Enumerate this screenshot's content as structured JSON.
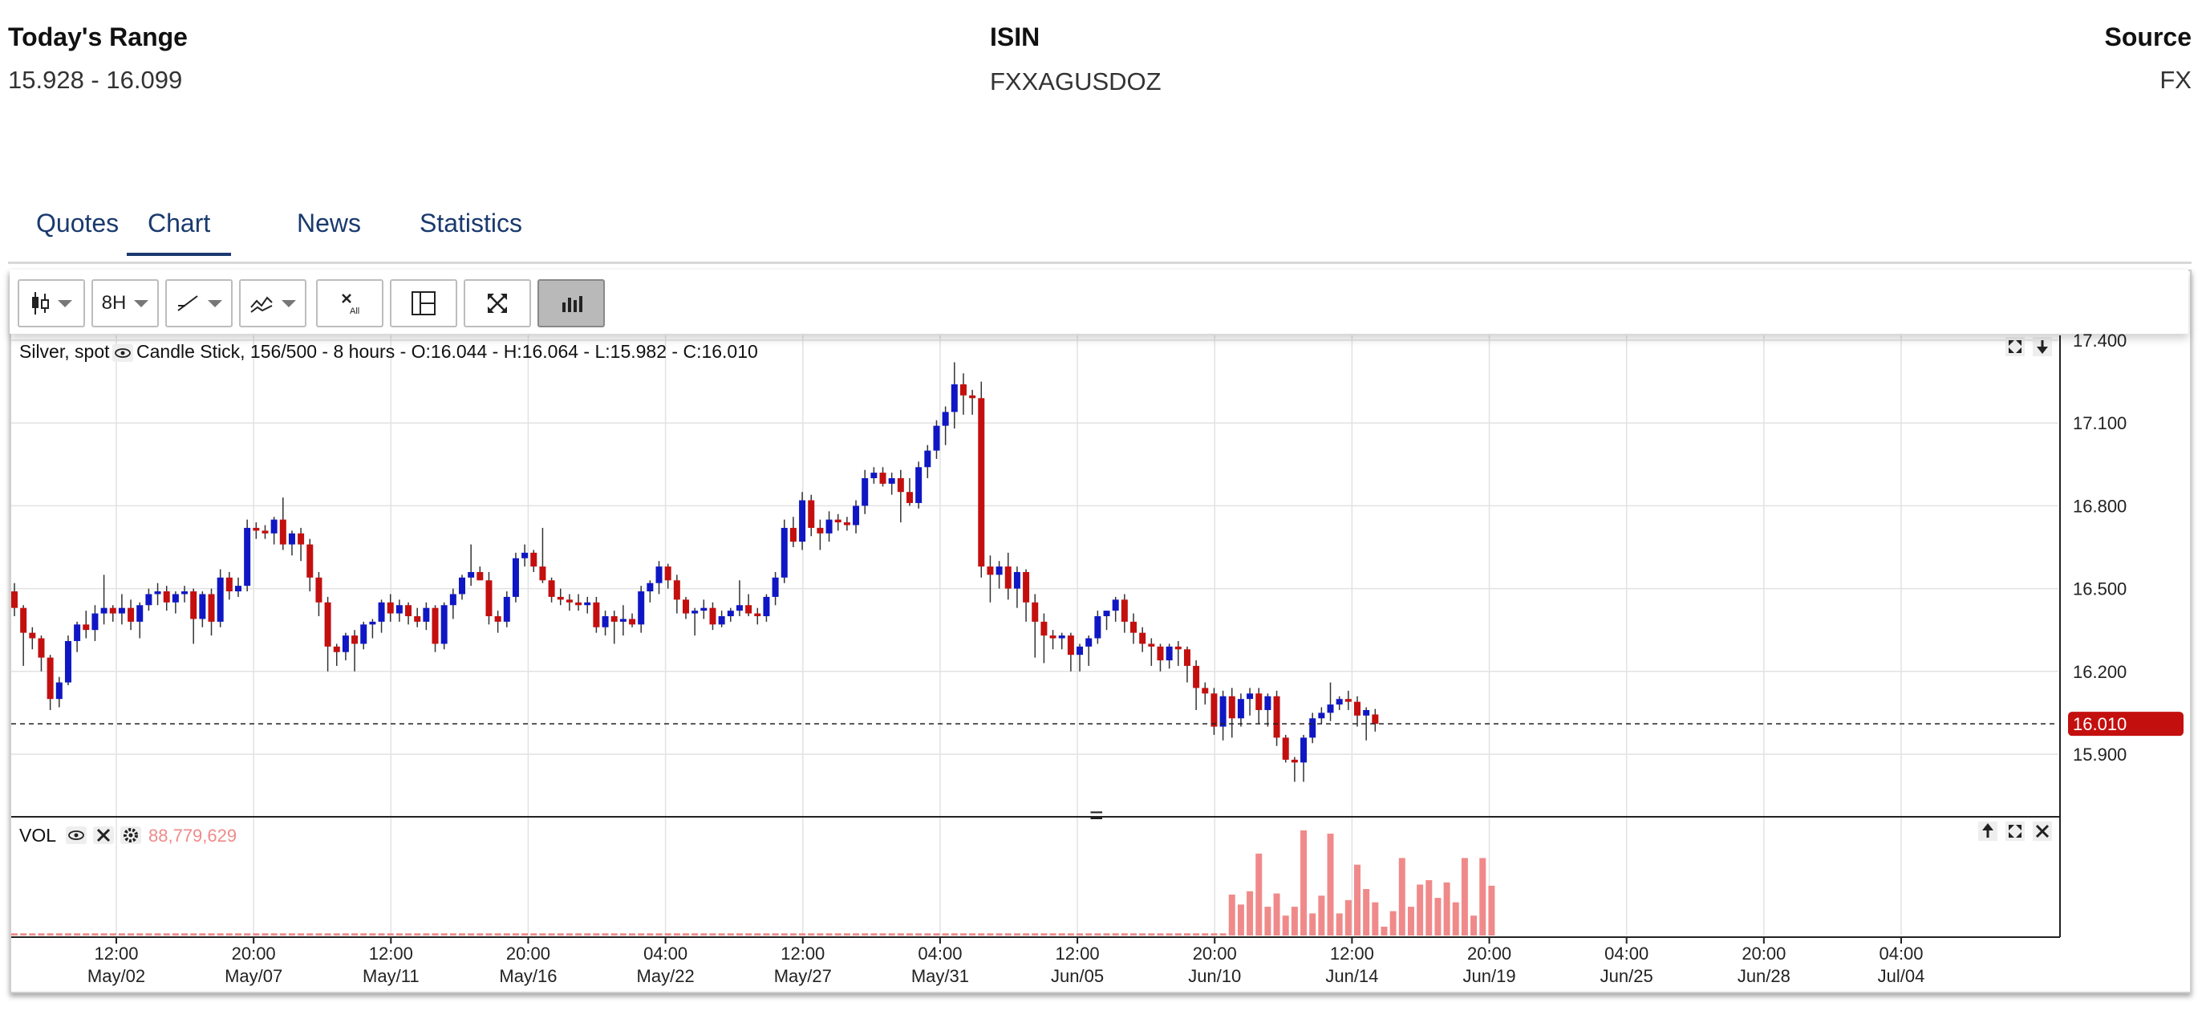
{
  "header": {
    "range_label": "Today's Range",
    "range_value": "15.928 - 16.099",
    "isin_label": "ISIN",
    "isin_value": "FXXAGUSDOZ",
    "source_label": "Source",
    "source_value": "FX"
  },
  "tabs": [
    {
      "label": "Quotes",
      "active": false
    },
    {
      "label": "Chart",
      "active": true
    },
    {
      "label": "News",
      "active": false
    },
    {
      "label": "Statistics",
      "active": false
    }
  ],
  "toolbar": {
    "chart_type_icon": "candlestick-icon",
    "interval_label": "8H",
    "draw_icon": "trendline-icon",
    "indicator_icon": "indicator-icon",
    "clear_icon": "clear-all-icon",
    "crosshair_icon": "crosshair-icon",
    "fullscreen_icon": "fullscreen-icon",
    "volume_icon": "volume-bars-icon"
  },
  "chart_data": {
    "type": "candlestick",
    "title": "Silver, spot",
    "subtitle": "Candle Stick, 156/500 - 8 hours - O:16.044 - H:16.064 - L:15.982 - C:16.010",
    "last_price": "16.010",
    "last_price_value": 16.01,
    "y_ticks": [
      "17.400",
      "17.100",
      "16.800",
      "16.500",
      "16.200",
      "15.900"
    ],
    "y_tick_values": [
      17.4,
      17.1,
      16.8,
      16.5,
      16.2,
      15.9
    ],
    "x_ticks": [
      {
        "time": "12:00",
        "date": "May/02"
      },
      {
        "time": "20:00",
        "date": "May/07"
      },
      {
        "time": "12:00",
        "date": "May/11"
      },
      {
        "time": "20:00",
        "date": "May/16"
      },
      {
        "time": "04:00",
        "date": "May/22"
      },
      {
        "time": "12:00",
        "date": "May/27"
      },
      {
        "time": "04:00",
        "date": "May/31"
      },
      {
        "time": "12:00",
        "date": "Jun/05"
      },
      {
        "time": "20:00",
        "date": "Jun/10"
      },
      {
        "time": "12:00",
        "date": "Jun/14"
      },
      {
        "time": "20:00",
        "date": "Jun/19"
      },
      {
        "time": "04:00",
        "date": "Jun/25"
      },
      {
        "time": "20:00",
        "date": "Jun/28"
      },
      {
        "time": "04:00",
        "date": "Jul/04"
      }
    ],
    "ohlc": [
      [
        16.49,
        16.52,
        16.4,
        16.43
      ],
      [
        16.43,
        16.44,
        16.22,
        16.34
      ],
      [
        16.34,
        16.36,
        16.28,
        16.32
      ],
      [
        16.32,
        16.33,
        16.2,
        16.25
      ],
      [
        16.25,
        16.26,
        16.06,
        16.1
      ],
      [
        16.1,
        16.18,
        16.07,
        16.16
      ],
      [
        16.16,
        16.33,
        16.15,
        16.31
      ],
      [
        16.31,
        16.38,
        16.27,
        16.37
      ],
      [
        16.37,
        16.42,
        16.32,
        16.35
      ],
      [
        16.35,
        16.44,
        16.31,
        16.41
      ],
      [
        16.41,
        16.55,
        16.37,
        16.43
      ],
      [
        16.43,
        16.44,
        16.38,
        16.41
      ],
      [
        16.41,
        16.48,
        16.37,
        16.43
      ],
      [
        16.43,
        16.46,
        16.35,
        16.38
      ],
      [
        16.38,
        16.45,
        16.32,
        16.44
      ],
      [
        16.44,
        16.5,
        16.42,
        16.48
      ],
      [
        16.48,
        16.52,
        16.44,
        16.49
      ],
      [
        16.49,
        16.51,
        16.42,
        16.45
      ],
      [
        16.45,
        16.49,
        16.41,
        16.48
      ],
      [
        16.48,
        16.51,
        16.45,
        16.49
      ],
      [
        16.49,
        16.5,
        16.3,
        16.39
      ],
      [
        16.39,
        16.49,
        16.36,
        16.48
      ],
      [
        16.48,
        16.5,
        16.33,
        16.38
      ],
      [
        16.38,
        16.57,
        16.36,
        16.54
      ],
      [
        16.54,
        16.56,
        16.46,
        16.49
      ],
      [
        16.49,
        16.54,
        16.47,
        16.51
      ],
      [
        16.51,
        16.75,
        16.49,
        16.72
      ],
      [
        16.72,
        16.74,
        16.68,
        16.71
      ],
      [
        16.71,
        16.73,
        16.68,
        16.7
      ],
      [
        16.7,
        16.76,
        16.66,
        16.75
      ],
      [
        16.75,
        16.83,
        16.64,
        16.66
      ],
      [
        16.66,
        16.71,
        16.62,
        16.7
      ],
      [
        16.7,
        16.72,
        16.6,
        16.66
      ],
      [
        16.66,
        16.68,
        16.49,
        16.54
      ],
      [
        16.54,
        16.56,
        16.4,
        16.45
      ],
      [
        16.45,
        16.47,
        16.2,
        16.29
      ],
      [
        16.29,
        16.3,
        16.22,
        16.27
      ],
      [
        16.27,
        16.34,
        16.24,
        16.33
      ],
      [
        16.33,
        16.35,
        16.2,
        16.3
      ],
      [
        16.3,
        16.38,
        16.28,
        16.37
      ],
      [
        16.37,
        16.39,
        16.32,
        16.38
      ],
      [
        16.38,
        16.46,
        16.34,
        16.45
      ],
      [
        16.45,
        16.48,
        16.38,
        16.41
      ],
      [
        16.41,
        16.46,
        16.38,
        16.44
      ],
      [
        16.44,
        16.45,
        16.37,
        16.4
      ],
      [
        16.4,
        16.43,
        16.36,
        16.38
      ],
      [
        16.38,
        16.45,
        16.35,
        16.43
      ],
      [
        16.43,
        16.44,
        16.27,
        16.3
      ],
      [
        16.3,
        16.45,
        16.28,
        16.44
      ],
      [
        16.44,
        16.5,
        16.39,
        16.48
      ],
      [
        16.48,
        16.55,
        16.46,
        16.54
      ],
      [
        16.54,
        16.66,
        16.51,
        16.56
      ],
      [
        16.56,
        16.58,
        16.53,
        16.53
      ],
      [
        16.53,
        16.56,
        16.37,
        16.4
      ],
      [
        16.4,
        16.42,
        16.34,
        16.38
      ],
      [
        16.38,
        16.49,
        16.36,
        16.47
      ],
      [
        16.47,
        16.63,
        16.45,
        16.61
      ],
      [
        16.61,
        16.66,
        16.58,
        16.63
      ],
      [
        16.63,
        16.64,
        16.56,
        16.58
      ],
      [
        16.58,
        16.72,
        16.52,
        16.53
      ],
      [
        16.53,
        16.54,
        16.45,
        16.47
      ],
      [
        16.47,
        16.5,
        16.44,
        16.46
      ],
      [
        16.46,
        16.48,
        16.42,
        16.45
      ],
      [
        16.45,
        16.48,
        16.42,
        16.44
      ],
      [
        16.44,
        16.47,
        16.41,
        16.45
      ],
      [
        16.45,
        16.47,
        16.34,
        16.36
      ],
      [
        16.36,
        16.42,
        16.33,
        16.4
      ],
      [
        16.4,
        16.42,
        16.3,
        16.38
      ],
      [
        16.38,
        16.44,
        16.33,
        16.39
      ],
      [
        16.39,
        16.41,
        16.36,
        16.37
      ],
      [
        16.37,
        16.51,
        16.34,
        16.49
      ],
      [
        16.49,
        16.53,
        16.45,
        16.52
      ],
      [
        16.52,
        16.6,
        16.48,
        16.58
      ],
      [
        16.58,
        16.59,
        16.5,
        16.53
      ],
      [
        16.53,
        16.55,
        16.41,
        16.46
      ],
      [
        16.46,
        16.47,
        16.39,
        16.41
      ],
      [
        16.41,
        16.43,
        16.33,
        16.42
      ],
      [
        16.42,
        16.46,
        16.39,
        16.43
      ],
      [
        16.43,
        16.45,
        16.35,
        16.37
      ],
      [
        16.37,
        16.42,
        16.36,
        16.4
      ],
      [
        16.4,
        16.43,
        16.38,
        16.42
      ],
      [
        16.42,
        16.53,
        16.4,
        16.44
      ],
      [
        16.44,
        16.48,
        16.4,
        16.41
      ],
      [
        16.41,
        16.43,
        16.37,
        16.4
      ],
      [
        16.4,
        16.48,
        16.38,
        16.47
      ],
      [
        16.47,
        16.56,
        16.44,
        16.54
      ],
      [
        16.54,
        16.75,
        16.52,
        16.72
      ],
      [
        16.72,
        16.76,
        16.65,
        16.67
      ],
      [
        16.67,
        16.85,
        16.64,
        16.82
      ],
      [
        16.82,
        16.84,
        16.69,
        16.72
      ],
      [
        16.72,
        16.75,
        16.64,
        16.7
      ],
      [
        16.7,
        16.78,
        16.67,
        16.75
      ],
      [
        16.75,
        16.77,
        16.71,
        16.74
      ],
      [
        16.74,
        16.76,
        16.71,
        16.73
      ],
      [
        16.73,
        16.82,
        16.7,
        16.8
      ],
      [
        16.8,
        16.93,
        16.77,
        16.9
      ],
      [
        16.9,
        16.94,
        16.88,
        16.92
      ],
      [
        16.92,
        16.94,
        16.87,
        16.88
      ],
      [
        16.88,
        16.92,
        16.84,
        16.9
      ],
      [
        16.9,
        16.93,
        16.74,
        16.85
      ],
      [
        16.85,
        16.9,
        16.8,
        16.81
      ],
      [
        16.81,
        16.96,
        16.79,
        16.94
      ],
      [
        16.94,
        17.02,
        16.9,
        17.0
      ],
      [
        17.0,
        17.11,
        16.97,
        17.09
      ],
      [
        17.09,
        17.16,
        17.02,
        17.14
      ],
      [
        17.14,
        17.32,
        17.08,
        17.24
      ],
      [
        17.24,
        17.28,
        17.13,
        17.2
      ],
      [
        17.2,
        17.22,
        17.13,
        17.19
      ],
      [
        17.19,
        17.25,
        16.54,
        16.58
      ],
      [
        16.58,
        16.62,
        16.45,
        16.55
      ],
      [
        16.55,
        16.6,
        16.5,
        16.58
      ],
      [
        16.58,
        16.63,
        16.46,
        16.5
      ],
      [
        16.5,
        16.58,
        16.43,
        16.56
      ],
      [
        16.56,
        16.57,
        16.38,
        16.45
      ],
      [
        16.45,
        16.48,
        16.25,
        16.38
      ],
      [
        16.38,
        16.41,
        16.23,
        16.33
      ],
      [
        16.33,
        16.35,
        16.28,
        16.32
      ],
      [
        16.32,
        16.34,
        16.28,
        16.33
      ],
      [
        16.33,
        16.34,
        16.2,
        16.26
      ],
      [
        16.26,
        16.3,
        16.2,
        16.29
      ],
      [
        16.29,
        16.33,
        16.22,
        16.32
      ],
      [
        16.32,
        16.42,
        16.3,
        16.4
      ],
      [
        16.4,
        16.42,
        16.35,
        16.42
      ],
      [
        16.42,
        16.47,
        16.38,
        16.46
      ],
      [
        16.46,
        16.48,
        16.34,
        16.38
      ],
      [
        16.38,
        16.41,
        16.3,
        16.34
      ],
      [
        16.34,
        16.36,
        16.27,
        16.3
      ],
      [
        16.3,
        16.32,
        16.22,
        16.29
      ],
      [
        16.29,
        16.3,
        16.2,
        16.24
      ],
      [
        16.24,
        16.3,
        16.21,
        16.29
      ],
      [
        16.29,
        16.31,
        16.22,
        16.28
      ],
      [
        16.28,
        16.29,
        16.16,
        16.22
      ],
      [
        16.22,
        16.24,
        16.06,
        16.14
      ],
      [
        16.14,
        16.16,
        16.08,
        16.12
      ],
      [
        16.12,
        16.14,
        15.97,
        16.0
      ],
      [
        16.0,
        16.13,
        15.95,
        16.11
      ],
      [
        16.11,
        16.14,
        15.96,
        16.03
      ],
      [
        16.03,
        16.12,
        16.0,
        16.1
      ],
      [
        16.1,
        16.14,
        16.04,
        16.12
      ],
      [
        16.12,
        16.14,
        16.01,
        16.06
      ],
      [
        16.06,
        16.12,
        16.0,
        16.11
      ],
      [
        16.11,
        16.13,
        15.93,
        15.96
      ],
      [
        15.96,
        15.97,
        15.87,
        15.88
      ],
      [
        15.88,
        15.89,
        15.8,
        15.87
      ],
      [
        15.87,
        15.97,
        15.8,
        15.96
      ],
      [
        15.96,
        16.05,
        15.94,
        16.03
      ],
      [
        16.03,
        16.07,
        16.01,
        16.05
      ],
      [
        16.05,
        16.16,
        16.02,
        16.08
      ],
      [
        16.08,
        16.11,
        16.06,
        16.1
      ],
      [
        16.1,
        16.13,
        16.06,
        16.09
      ],
      [
        16.09,
        16.11,
        16.0,
        16.04
      ],
      [
        16.04,
        16.07,
        15.95,
        16.06
      ],
      [
        16.044,
        16.064,
        15.982,
        16.01
      ]
    ],
    "volume_label": "VOL",
    "volume_value": "88,779,629",
    "volume": [
      2,
      2,
      2,
      2,
      2,
      2,
      2,
      2,
      2,
      2,
      2,
      2,
      2,
      2,
      2,
      2,
      2,
      2,
      2,
      2,
      2,
      2,
      2,
      2,
      2,
      2,
      2,
      2,
      2,
      2,
      2,
      2,
      2,
      2,
      2,
      2,
      2,
      2,
      2,
      2,
      2,
      2,
      2,
      2,
      2,
      2,
      2,
      2,
      2,
      2,
      2,
      2,
      2,
      2,
      2,
      2,
      2,
      2,
      2,
      2,
      2,
      2,
      2,
      2,
      2,
      2,
      2,
      2,
      2,
      2,
      2,
      2,
      2,
      2,
      2,
      2,
      2,
      2,
      2,
      2,
      2,
      2,
      2,
      2,
      2,
      2,
      2,
      2,
      2,
      2,
      2,
      2,
      2,
      2,
      2,
      2,
      2,
      2,
      2,
      2,
      2,
      2,
      2,
      2,
      2,
      2,
      2,
      2,
      2,
      2,
      2,
      2,
      2,
      2,
      2,
      2,
      2,
      2,
      2,
      2,
      2,
      2,
      2,
      2,
      2,
      2,
      2,
      2,
      2,
      2,
      2,
      2,
      2,
      2,
      2,
      2,
      37,
      28,
      40,
      74,
      26,
      38,
      18,
      26,
      95,
      20,
      36,
      92,
      20,
      32,
      64,
      42,
      30,
      8,
      22,
      70,
      26,
      46,
      50,
      34,
      48,
      30,
      70,
      18,
      70,
      45
    ],
    "volume_start_index": 0,
    "colors": {
      "up": "#0f17c4",
      "down": "#c40f0f",
      "volume": "#f08a8a",
      "last_price_badge": "#c40f0f",
      "grid": "#e2e2e2"
    }
  }
}
